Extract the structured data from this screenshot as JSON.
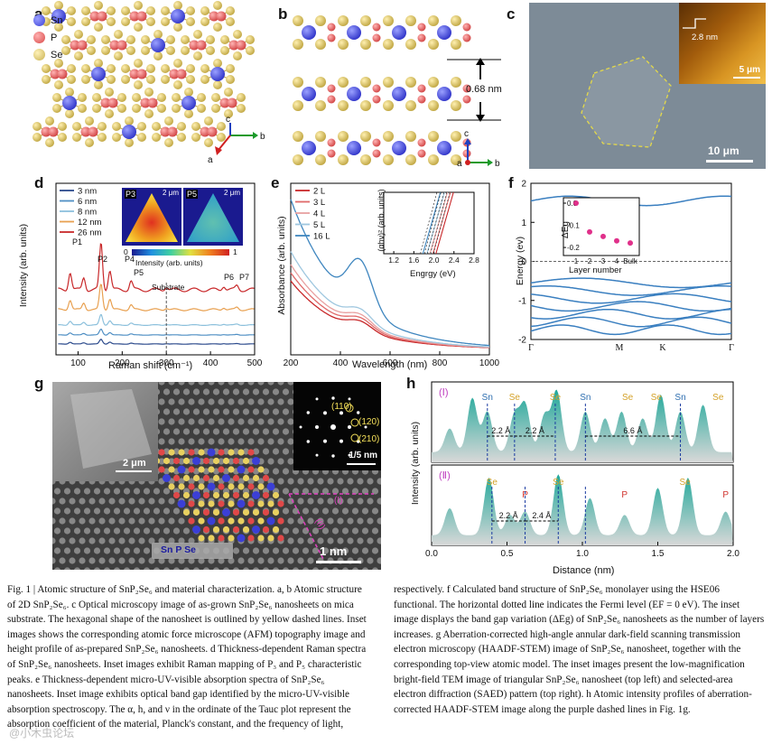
{
  "panel_labels": {
    "a": "a",
    "b": "b",
    "c": "c",
    "d": "d",
    "e": "e",
    "f": "f",
    "g": "g",
    "h": "h"
  },
  "panel_a": {
    "legend": [
      {
        "symbol": "Sn",
        "color": "#3b3fd6"
      },
      {
        "symbol": "P",
        "color": "#e05a5a"
      },
      {
        "symbol": "Se",
        "color": "#d9c86a"
      }
    ],
    "axes": {
      "c": "c",
      "b": "b",
      "a": "a"
    }
  },
  "panel_b": {
    "spacing_label": "0.68 nm",
    "axes": {
      "c": "c",
      "a": "a",
      "b": "b"
    }
  },
  "panel_c": {
    "inset_height": "2.8 nm",
    "inset_scale": "5 μm",
    "scale": "10 μm"
  },
  "panel_d": {
    "legend": [
      {
        "name": "3 nm",
        "color": "#2b4a8c"
      },
      {
        "name": "6 nm",
        "color": "#4f8fc4"
      },
      {
        "name": "8 nm",
        "color": "#8cc0dc"
      },
      {
        "name": "12 nm",
        "color": "#e8a050"
      },
      {
        "name": "26 nm",
        "color": "#c8282a"
      }
    ],
    "peaks": [
      "P1",
      "P2",
      "P3",
      "P4",
      "P5",
      "P6",
      "P7"
    ],
    "substrate": "Substrate",
    "inset_labels": [
      "P3",
      "P5"
    ],
    "inset_scale": "2 μm",
    "colorbar": {
      "min": "0",
      "max": "1",
      "label": "Intensity (arb. units)"
    },
    "chart_data": {
      "type": "line",
      "xlabel": "Raman shift (cm⁻¹)",
      "ylabel": "Intensity (arb. units)",
      "xlim": [
        50,
        500
      ],
      "xticks": [
        "100",
        "200",
        "300",
        "400",
        "500"
      ]
    }
  },
  "panel_e": {
    "legend": [
      {
        "name": "2 L",
        "color": "#c8282a"
      },
      {
        "name": "3 L",
        "color": "#e06a6a"
      },
      {
        "name": "4 L",
        "color": "#e8a0a0"
      },
      {
        "name": "5 L",
        "color": "#9fc7df"
      },
      {
        "name": "16 L",
        "color": "#3f86bf"
      }
    ],
    "inset": {
      "ylabel": "(αhν)² (arb. units)",
      "xlabel": "Engrgy (eV)",
      "xticks": [
        "1.2",
        "1.6",
        "2.0",
        "2.4",
        "2.8"
      ]
    },
    "chart_data": {
      "type": "line",
      "xlabel": "Wavelength (nm)",
      "ylabel": "Absorbance (arb. units)",
      "xlim": [
        200,
        1000
      ],
      "xticks": [
        "200",
        "400",
        "600",
        "800",
        "1000"
      ]
    }
  },
  "panel_f": {
    "inset": {
      "ylabel": "ΔEg",
      "xlabel": "Layer number",
      "xticks": [
        "1",
        "2",
        "3",
        "4",
        "Bulk"
      ],
      "yticks": [
        "0.0",
        "-0.1",
        "-0.2"
      ],
      "values": [
        {
          "x": "1",
          "y": 0.0
        },
        {
          "x": "2",
          "y": -0.13
        },
        {
          "x": "3",
          "y": -0.15
        },
        {
          "x": "4",
          "y": -0.17
        },
        {
          "x": "Bulk",
          "y": -0.18
        }
      ]
    },
    "chart_data": {
      "type": "line",
      "ylabel": "Energy (ev)",
      "ylim": [
        -2,
        2
      ],
      "yticks": [
        "2",
        "1",
        "0",
        "-1",
        "-2"
      ],
      "xticks": [
        "Γ",
        "M",
        "K",
        "Γ"
      ]
    }
  },
  "panel_g": {
    "inset_scale": "2 μm",
    "saed_spots": [
      "(110)",
      "(120)",
      "(210)"
    ],
    "saed_scale": "1/5 nm",
    "legend": "Sn P Se",
    "scale": "1 nm",
    "lines": [
      "(I)",
      "(II)"
    ]
  },
  "panel_h": {
    "row1": {
      "label": "(Ⅰ)",
      "atoms": [
        {
          "s": "Sn",
          "c": "#2f6fb0"
        },
        {
          "s": "Se",
          "c": "#d4a22a"
        },
        {
          "s": "Se",
          "c": "#d4a22a"
        },
        {
          "s": "Sn",
          "c": "#2f6fb0"
        },
        {
          "s": "Se",
          "c": "#d4a22a"
        },
        {
          "s": "Se",
          "c": "#d4a22a"
        },
        {
          "s": "Sn",
          "c": "#2f6fb0"
        },
        {
          "s": "Se",
          "c": "#d4a22a"
        }
      ],
      "distances": [
        "2.2 Å",
        "2.2 Å",
        "6.6 Å"
      ]
    },
    "row2": {
      "label": "(Ⅱ)",
      "atoms": [
        {
          "s": "Se",
          "c": "#d4a22a"
        },
        {
          "s": "P",
          "c": "#d0322d"
        },
        {
          "s": "Se",
          "c": "#d4a22a"
        },
        {
          "s": "P",
          "c": "#d0322d"
        },
        {
          "s": "Se",
          "c": "#d4a22a"
        },
        {
          "s": "P",
          "c": "#d0322d"
        }
      ],
      "distances": [
        "2.2 Å",
        "2.4 Å"
      ]
    },
    "chart_data": {
      "type": "line",
      "xlabel": "Distance (nm)",
      "ylabel": "Intensity (arb. units)",
      "xlim": [
        0,
        2.0
      ],
      "xticks": [
        "0.0",
        "0.5",
        "1.0",
        "1.5",
        "2.0"
      ]
    }
  },
  "caption_left": "Fig. 1 | Atomic structure of SnP₂Se₆ and material characterization. a, b Atomic structure of 2D SnP₂Se₆. c Optical microscopy image of as-grown SnP₂Se₆ nanosheets on mica substrate. The hexagonal shape of the nanosheet is outlined by yellow dashed lines. Inset images shows the corresponding atomic force microscope (AFM) topography image and height profile of as-prepared SnP₂Se₆ nanosheets. d Thickness-dependent Raman spectra of SnP₂Se₆ nanosheets. Inset images exhibit Raman mapping of P₃ and P₅ characteristic peaks. e Thickness-dependent micro-UV-visible absorption spectra of SnP₂Se₆ nanosheets. Inset image exhibits optical band gap identified by the micro-UV-visible absorption spectroscopy. The α, h, and ν in the ordinate of the Tauc plot represent the absorption coefficient of the material, Planck's constant, and the frequency of light,",
  "caption_right": "respectively. f Calculated band structure of SnP₂Se₆ monolayer using the HSE06 functional. The horizontal dotted line indicates the Fermi level (EF = 0 eV). The inset image displays the band gap variation (ΔEg) of SnP₂Se₆ nanosheets as the number of layers increases. g Aberration-corrected high-angle annular dark-field scanning transmission electron microscopy (HAADF-STEM) image of SnP₂Se₆ nanosheet, together with the corresponding top-view atomic model. The inset images present the low-magnification bright-field TEM image of triangular SnP₂Se₆ nanosheet (top left) and selected-area electron diffraction (SAED) pattern (top right). h Atomic intensity profiles of aberration-corrected HAADF-STEM image along the purple dashed lines in Fig. 1g.",
  "watermark": "@小木虫论坛"
}
